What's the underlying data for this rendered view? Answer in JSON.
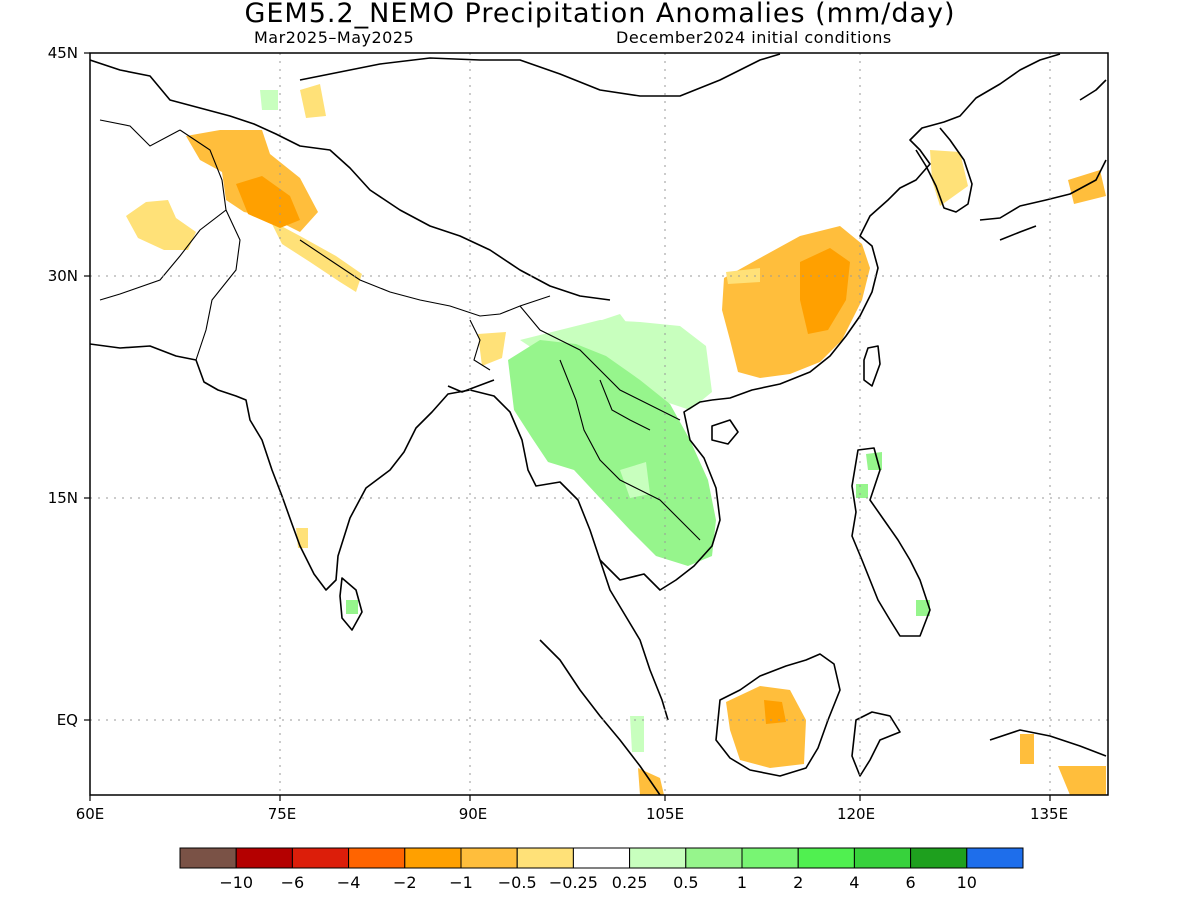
{
  "title": "GEM5.2_NEMO Precipitation Anomalies (mm/day)",
  "period": "Mar2025–May2025",
  "init": "December2024 initial conditions",
  "lat_labels": [
    "45N",
    "30N",
    "15N",
    "EQ"
  ],
  "lon_labels": [
    "60E",
    "75E",
    "90E",
    "105E",
    "120E",
    "135E"
  ],
  "colorbar": {
    "colors": [
      "#7a5246",
      "#b40000",
      "#dc1e0a",
      "#ff6400",
      "#ffa000",
      "#ffbe3c",
      "#ffe178",
      "#ffffff",
      "#c8ffbe",
      "#96f58c",
      "#78f573",
      "#50f050",
      "#37d23c",
      "#1ea01e",
      "#1e6eeb"
    ],
    "labels": [
      "−10",
      "−6",
      "−4",
      "−2",
      "−1",
      "−0.5",
      "−0.25",
      "0.25",
      "0.5",
      "1",
      "2",
      "4",
      "6",
      "10"
    ]
  }
}
